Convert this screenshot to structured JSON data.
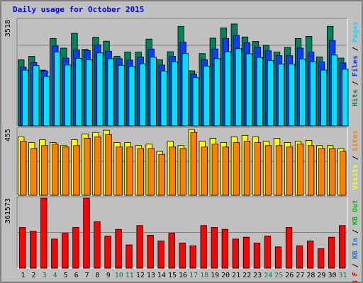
{
  "chart_data": {
    "type": "bar",
    "title": "Daily usage for October 2015",
    "categories": [
      "1",
      "2",
      "3",
      "4",
      "5",
      "6",
      "7",
      "8",
      "9",
      "10",
      "11",
      "12",
      "13",
      "14",
      "15",
      "16",
      "17",
      "18",
      "19",
      "20",
      "21",
      "22",
      "23",
      "24",
      "25",
      "26",
      "27",
      "28",
      "29",
      "30",
      "31"
    ],
    "weekend_days": [
      "3",
      "4",
      "10",
      "11",
      "17",
      "18",
      "24",
      "25",
      "31"
    ],
    "colors": {
      "background": "#c0c0c0",
      "hits": "#00805c",
      "files": "#0040ff",
      "pages": "#00e0ff",
      "visits": "#ffff00",
      "sites": "#ff8000",
      "kbin": "#0080ff",
      "kbout": "#00c000",
      "kbf": "#ff0000",
      "weekday_label": "#000000",
      "weekend_label": "#00805c"
    },
    "panels": [
      {
        "name": "hits-files-pages",
        "max_label": "3518",
        "ylim": [
          0,
          3518
        ],
        "legend": [
          {
            "text": "Hits",
            "color": "#00805c"
          },
          {
            "text": " / ",
            "color": "#000000"
          },
          {
            "text": "Files",
            "color": "#0040ff"
          },
          {
            "text": " / ",
            "color": "#000000"
          },
          {
            "text": "Pages",
            "color": "#00e0ff"
          }
        ],
        "series": [
          {
            "name": "Hits",
            "color": "#00805c",
            "values": [
              2190,
              2310,
              1850,
              2900,
              2580,
              3070,
              2540,
              2940,
              2810,
              2310,
              2450,
              2450,
              2880,
              2190,
              2460,
              3300,
              1830,
              2400,
              2910,
              3250,
              3380,
              2950,
              2800,
              2670,
              2450,
              2600,
              2900,
              2970,
              2290,
              3300,
              2250
            ]
          },
          {
            "name": "Files",
            "color": "#0040ff",
            "values": [
              1950,
              2100,
              1830,
              2650,
              2250,
              2520,
              2500,
              2690,
              2480,
              2230,
              2180,
              2290,
              2550,
              2020,
              2310,
              2780,
              1720,
              2190,
              2550,
              2900,
              3000,
              2760,
              2610,
              2490,
              2330,
              2330,
              2580,
              2450,
              2120,
              2830,
              2090
            ]
          },
          {
            "name": "Pages",
            "color": "#00e0ff",
            "values": [
              1850,
              2000,
              1640,
              2450,
              2020,
              2240,
              2200,
              2420,
              2230,
              2010,
              1970,
              2060,
              2280,
              1820,
              2120,
              2400,
              1600,
              1980,
              2230,
              2460,
              2560,
              2390,
              2270,
              2170,
              2050,
              2050,
              2220,
              2130,
              1850,
              2350,
              1880
            ]
          }
        ]
      },
      {
        "name": "visits-sites",
        "max_label": "455",
        "ylim": [
          0,
          455
        ],
        "legend": [
          {
            "text": "Visits",
            "color": "#ffff00"
          },
          {
            "text": " / ",
            "color": "#000000"
          },
          {
            "text": "Sites",
            "color": "#ff8000"
          }
        ],
        "series": [
          {
            "name": "Visits",
            "color": "#ffff00",
            "values": [
              400,
              360,
              380,
              360,
              340,
              380,
              420,
              430,
              445,
              360,
              360,
              340,
              350,
              300,
              370,
              340,
              450,
              370,
              390,
              360,
              400,
              410,
              400,
              370,
              390,
              360,
              370,
              375,
              340,
              340,
              320
            ]
          },
          {
            "name": "Sites",
            "color": "#ff8000",
            "values": [
              370,
              320,
              340,
              350,
              330,
              340,
              390,
              400,
              415,
              330,
              330,
              320,
              320,
              280,
              330,
              320,
              430,
              330,
              350,
              330,
              360,
              370,
              360,
              340,
              340,
              330,
              350,
              340,
              320,
              320,
              300
            ]
          }
        ]
      },
      {
        "name": "kbytes",
        "max_label": "361573",
        "ylim": [
          0,
          361573
        ],
        "legend": [
          {
            "text": "KB F",
            "color": "#ff0000"
          },
          {
            "text": " / ",
            "color": "#000000"
          },
          {
            "text": "KB In",
            "color": "#0080ff"
          },
          {
            "text": " / ",
            "color": "#000000"
          },
          {
            "text": "KB Out",
            "color": "#00c000"
          }
        ],
        "series": [
          {
            "name": "KB F",
            "color": "#ff0000",
            "values": [
              210000,
              190000,
              361573,
              150000,
              180000,
              210000,
              361573,
              240000,
              165000,
              200000,
              120000,
              220000,
              170000,
              140000,
              180000,
              130000,
              115000,
              220000,
              210000,
              200000,
              150000,
              160000,
              130000,
              165000,
              110000,
              210000,
              115000,
              140000,
              100000,
              160000,
              220000
            ]
          }
        ]
      }
    ]
  }
}
